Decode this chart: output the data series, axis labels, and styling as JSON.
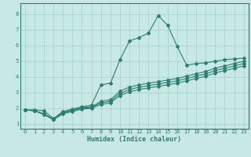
{
  "background_color": "#c8e8e5",
  "grid_color": "#a8d4d0",
  "line_color": "#2e7d72",
  "marker_color": "#2e7d72",
  "xlabel": "Humidex (Indice chaleur)",
  "xlim": [
    -0.5,
    23.5
  ],
  "ylim": [
    0.7,
    8.7
  ],
  "xticks": [
    0,
    1,
    2,
    3,
    4,
    5,
    6,
    7,
    8,
    9,
    10,
    11,
    12,
    13,
    14,
    15,
    16,
    17,
    18,
    19,
    20,
    21,
    22,
    23
  ],
  "yticks": [
    1,
    2,
    3,
    4,
    5,
    6,
    7,
    8
  ],
  "series1_x": [
    0,
    1,
    2,
    3,
    4,
    5,
    6,
    7,
    8,
    9,
    10,
    11,
    12,
    13,
    14,
    15,
    16,
    17,
    18,
    19,
    20,
    21,
    22,
    23
  ],
  "series1_y": [
    1.9,
    1.9,
    1.85,
    1.35,
    1.8,
    1.95,
    2.1,
    2.2,
    3.5,
    3.6,
    5.1,
    6.3,
    6.5,
    6.8,
    7.9,
    7.3,
    5.95,
    4.75,
    4.85,
    4.9,
    5.0,
    5.1,
    5.15,
    5.2
  ],
  "series2_x": [
    0,
    1,
    2,
    3,
    4,
    5,
    6,
    7,
    8,
    9,
    10,
    11,
    12,
    13,
    14,
    15,
    16,
    17,
    18,
    19,
    20,
    21,
    22,
    23
  ],
  "series2_y": [
    1.9,
    1.85,
    1.65,
    1.3,
    1.75,
    1.9,
    2.05,
    2.1,
    2.45,
    2.55,
    3.1,
    3.35,
    3.5,
    3.6,
    3.7,
    3.8,
    3.9,
    4.05,
    4.2,
    4.35,
    4.55,
    4.7,
    4.85,
    5.0
  ],
  "series3_x": [
    0,
    1,
    2,
    3,
    4,
    5,
    6,
    7,
    8,
    9,
    10,
    11,
    12,
    13,
    14,
    15,
    16,
    17,
    18,
    19,
    20,
    21,
    22,
    23
  ],
  "series3_y": [
    1.9,
    1.85,
    1.65,
    1.3,
    1.7,
    1.85,
    2.0,
    2.05,
    2.35,
    2.45,
    2.95,
    3.2,
    3.35,
    3.45,
    3.55,
    3.65,
    3.75,
    3.9,
    4.05,
    4.2,
    4.4,
    4.55,
    4.7,
    4.85
  ],
  "series4_x": [
    0,
    1,
    2,
    3,
    4,
    5,
    6,
    7,
    8,
    9,
    10,
    11,
    12,
    13,
    14,
    15,
    16,
    17,
    18,
    19,
    20,
    21,
    22,
    23
  ],
  "series4_y": [
    1.9,
    1.85,
    1.6,
    1.28,
    1.65,
    1.8,
    1.95,
    2.0,
    2.25,
    2.35,
    2.82,
    3.05,
    3.2,
    3.3,
    3.4,
    3.5,
    3.6,
    3.75,
    3.9,
    4.05,
    4.25,
    4.4,
    4.55,
    4.7
  ]
}
